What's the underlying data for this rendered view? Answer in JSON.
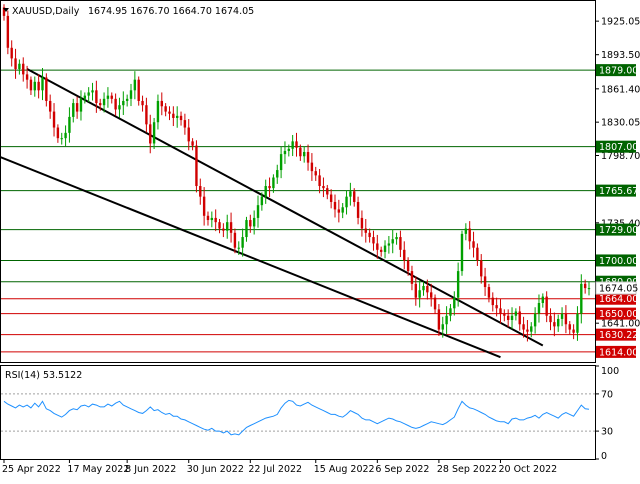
{
  "chart_data": {
    "type": "candlestick",
    "symbol_header": "XAUUSD,Daily",
    "ohlc_header": "1674.95 1676.70 1664.70 1674.05",
    "price_ylim": [
      1604.5,
      1944.0
    ],
    "price_ticks": [
      1925.05,
      1893.5,
      1861.4,
      1830.05,
      1798.7,
      1735.4,
      1641.0
    ],
    "price_ticks_label": [
      "1925.05",
      "1893.50",
      "1861.40",
      "1830.05",
      "1798.70",
      "1735.40",
      "1641.00"
    ],
    "current_price": 1674.05,
    "current_price_label": "1674.05",
    "levels": [
      {
        "value": 1879.0,
        "label": "1879.00",
        "kind": "resistance"
      },
      {
        "value": 1807.0,
        "label": "1807.00",
        "kind": "resistance"
      },
      {
        "value": 1765.67,
        "label": "1765.67",
        "kind": "resistance"
      },
      {
        "value": 1729.0,
        "label": "1729.00",
        "kind": "resistance"
      },
      {
        "value": 1700.0,
        "label": "1700.00",
        "kind": "resistance"
      },
      {
        "value": 1680.0,
        "label": "1680.00",
        "kind": "resistance"
      },
      {
        "value": 1664.0,
        "label": "1664.00",
        "kind": "support"
      },
      {
        "value": 1650.0,
        "label": "1650.00",
        "kind": "support"
      },
      {
        "value": 1630.22,
        "label": "1630.22",
        "kind": "support"
      },
      {
        "value": 1614.0,
        "label": "1614.00",
        "kind": "support"
      }
    ],
    "channel_lines": [
      {
        "from": [
          6,
          1880
        ],
        "to": [
          140,
          1620
        ]
      },
      {
        "from": [
          -7,
          1806
        ],
        "to": [
          129,
          1609
        ]
      }
    ],
    "x_ticks": [
      {
        "index": 0,
        "label": "25 Apr 2022"
      },
      {
        "index": 17,
        "label": "17 May 2022"
      },
      {
        "index": 32,
        "label": "8 Jun 2022"
      },
      {
        "index": 48,
        "label": "30 Jun 2022"
      },
      {
        "index": 64,
        "label": "22 Jul 2022"
      },
      {
        "index": 81,
        "label": "15 Aug 2022"
      },
      {
        "index": 97,
        "label": "6 Sep 2022"
      },
      {
        "index": 113,
        "label": "28 Sep 2022"
      },
      {
        "index": 129,
        "label": "20 Oct 2022"
      }
    ],
    "rsi_label": "RSI(14) 53.5122",
    "rsi_ylim": [
      0,
      100
    ],
    "rsi_ticks": [
      100,
      70,
      30,
      0
    ],
    "rsi_ticks_label": [
      "100",
      "70",
      "30",
      "0"
    ],
    "colors": {
      "up": "#00a000",
      "down": "#d00000",
      "support": "#d00000",
      "resistance": "#006400",
      "rsi": "#1e90ff",
      "trend": "#000000"
    },
    "closes": [
      1930,
      1900,
      1890,
      1880,
      1885,
      1875,
      1870,
      1860,
      1868,
      1860,
      1872,
      1850,
      1840,
      1825,
      1815,
      1815,
      1820,
      1835,
      1848,
      1840,
      1852,
      1855,
      1858,
      1860,
      1848,
      1846,
      1852,
      1855,
      1852,
      1842,
      1846,
      1850,
      1852,
      1860,
      1870,
      1850,
      1846,
      1828,
      1810,
      1830,
      1850,
      1845,
      1840,
      1838,
      1834,
      1836,
      1832,
      1825,
      1812,
      1808,
      1770,
      1760,
      1742,
      1738,
      1740,
      1736,
      1730,
      1728,
      1736,
      1726,
      1712,
      1712,
      1722,
      1738,
      1732,
      1740,
      1752,
      1760,
      1770,
      1768,
      1778,
      1785,
      1800,
      1803,
      1805,
      1812,
      1806,
      1798,
      1802,
      1792,
      1784,
      1780,
      1770,
      1768,
      1762,
      1755,
      1748,
      1745,
      1750,
      1760,
      1765,
      1755,
      1740,
      1730,
      1726,
      1722,
      1716,
      1710,
      1708,
      1714,
      1716,
      1720,
      1722,
      1710,
      1700,
      1690,
      1678,
      1665,
      1672,
      1676,
      1670,
      1665,
      1654,
      1635,
      1640,
      1648,
      1655,
      1665,
      1690,
      1725,
      1730,
      1718,
      1712,
      1700,
      1685,
      1675,
      1665,
      1658,
      1655,
      1650,
      1648,
      1644,
      1648,
      1652,
      1640,
      1635,
      1633,
      1638,
      1650,
      1660,
      1666,
      1648,
      1642,
      1638,
      1645,
      1650,
      1640,
      1635,
      1632,
      1650,
      1678,
      1674,
      1674
    ],
    "rsi": [
      62,
      59,
      57,
      55,
      58,
      56,
      58,
      55,
      60,
      56,
      62,
      54,
      52,
      49,
      47,
      45,
      48,
      52,
      54,
      53,
      57,
      58,
      56,
      59,
      58,
      56,
      56,
      59,
      57,
      60,
      62,
      58,
      56,
      54,
      52,
      50,
      49,
      52,
      56,
      52,
      53,
      50,
      48,
      49,
      46,
      46,
      43,
      42,
      40,
      38,
      36,
      34,
      32,
      31,
      33,
      30,
      30,
      28,
      30,
      26,
      27,
      26,
      30,
      34,
      36,
      38,
      40,
      42,
      44,
      45,
      46,
      48,
      55,
      60,
      63,
      62,
      58,
      57,
      59,
      61,
      58,
      56,
      54,
      52,
      50,
      48,
      48,
      46,
      45,
      48,
      52,
      50,
      48,
      44,
      42,
      42,
      40,
      38,
      40,
      42,
      44,
      43,
      41,
      40,
      38,
      36,
      34,
      33,
      34,
      36,
      38,
      40,
      39,
      38,
      37,
      39,
      42,
      45,
      54,
      62,
      58,
      55,
      54,
      52,
      50,
      48,
      45,
      43,
      41,
      40,
      40,
      38,
      43,
      44,
      42,
      42,
      44,
      45,
      47,
      44,
      48,
      50,
      48,
      46,
      44,
      48,
      50,
      48,
      46,
      52,
      58,
      54,
      53.5
    ]
  }
}
